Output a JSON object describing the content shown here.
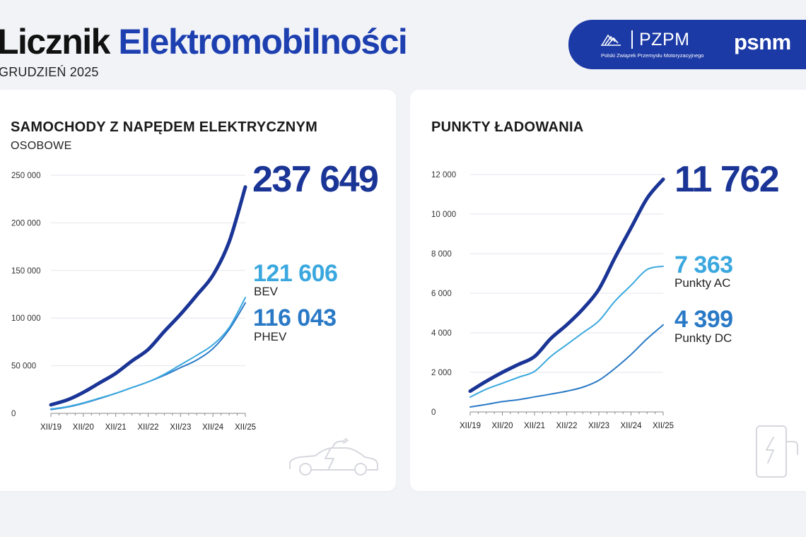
{
  "header": {
    "title_part1": "Licznik",
    "title_part2": "Elektromobilności",
    "subtitle": "GRUDZIEŃ 2025"
  },
  "brand": {
    "pzpm_name": "PZPM",
    "pzpm_full": "Polski Związek Przemysłu Motoryzacyjnego",
    "psnm_name": "psnm"
  },
  "colors": {
    "total": "#1a3596",
    "bev": "#3aa8df",
    "phev": "#2979c6",
    "ac": "#3aa8df",
    "dc": "#2979c6",
    "grid": "#e3e6ec",
    "brand_bg": "#1c3aa6"
  },
  "chart_data": [
    {
      "type": "line",
      "title": "SAMOCHODY Z NAPĘDEM ELEKTRYCZNYM",
      "subtitle": "OSOBOWE",
      "x_ticks": [
        "XII/19",
        "XII/20",
        "XII/21",
        "XII/22",
        "XII/23",
        "XII/24",
        "XII/25"
      ],
      "ylim": [
        0,
        250000
      ],
      "y_ticks": [
        0,
        50000,
        100000,
        150000,
        200000,
        250000
      ],
      "y_tick_labels": [
        "0",
        "50 000",
        "100 000",
        "150 000",
        "200 000",
        "250 000"
      ],
      "grid": true,
      "series": [
        {
          "key": "total",
          "name": "",
          "display": "237 649",
          "x": [
            0,
            0.5,
            1,
            1.5,
            2,
            2.5,
            3,
            3.5,
            4,
            4.5,
            5,
            5.5,
            6
          ],
          "values": [
            9000,
            14000,
            22000,
            32000,
            42000,
            55000,
            67000,
            86000,
            104000,
            124000,
            145000,
            180000,
            237649
          ]
        },
        {
          "key": "bev",
          "name": "BEV",
          "display": "121 606",
          "x": [
            0,
            0.5,
            1,
            1.5,
            2,
            2.5,
            3,
            3.5,
            4,
            4.5,
            5,
            5.5,
            6
          ],
          "values": [
            4500,
            7000,
            11000,
            16000,
            21000,
            27000,
            33000,
            41000,
            51000,
            61000,
            72000,
            90000,
            121606
          ]
        },
        {
          "key": "phev",
          "name": "PHEV",
          "display": "116 043",
          "x": [
            0,
            0.5,
            1,
            1.5,
            2,
            2.5,
            3,
            3.5,
            4,
            4.5,
            5,
            5.5,
            6
          ],
          "values": [
            4000,
            6500,
            10500,
            15500,
            21000,
            27000,
            33000,
            40000,
            48000,
            56000,
            68000,
            88000,
            116043
          ]
        }
      ]
    },
    {
      "type": "line",
      "title": "PUNKTY ŁADOWANIA",
      "x_ticks": [
        "XII/19",
        "XII/20",
        "XII/21",
        "XII/22",
        "XII/23",
        "XII/24",
        "XII/25"
      ],
      "ylim": [
        0,
        12000
      ],
      "y_ticks": [
        0,
        2000,
        4000,
        6000,
        8000,
        10000,
        12000
      ],
      "y_tick_labels": [
        "0",
        "2 000",
        "4 000",
        "6 000",
        "8 000",
        "10 000",
        "12 000"
      ],
      "grid": true,
      "series": [
        {
          "key": "total",
          "name": "",
          "display": "11 762",
          "x": [
            0,
            0.5,
            1,
            1.5,
            2,
            2.5,
            3,
            3.5,
            4,
            4.5,
            5,
            5.5,
            6
          ],
          "values": [
            1050,
            1550,
            2000,
            2400,
            2800,
            3700,
            4400,
            5200,
            6200,
            7800,
            9300,
            10800,
            11762
          ]
        },
        {
          "key": "ac",
          "name": "Punkty AC",
          "display": "7 363",
          "x": [
            0,
            0.5,
            1,
            1.5,
            2,
            2.5,
            3,
            3.5,
            4,
            4.5,
            5,
            5.5,
            6
          ],
          "values": [
            750,
            1150,
            1450,
            1750,
            2050,
            2800,
            3400,
            4000,
            4600,
            5600,
            6400,
            7200,
            7363
          ]
        },
        {
          "key": "dc",
          "name": "Punkty DC",
          "display": "4 399",
          "x": [
            0,
            0.5,
            1,
            1.5,
            2,
            2.5,
            3,
            3.5,
            4,
            4.5,
            5,
            5.5,
            6
          ],
          "values": [
            250,
            380,
            520,
            620,
            760,
            900,
            1050,
            1250,
            1600,
            2200,
            2900,
            3700,
            4399
          ]
        }
      ]
    }
  ]
}
